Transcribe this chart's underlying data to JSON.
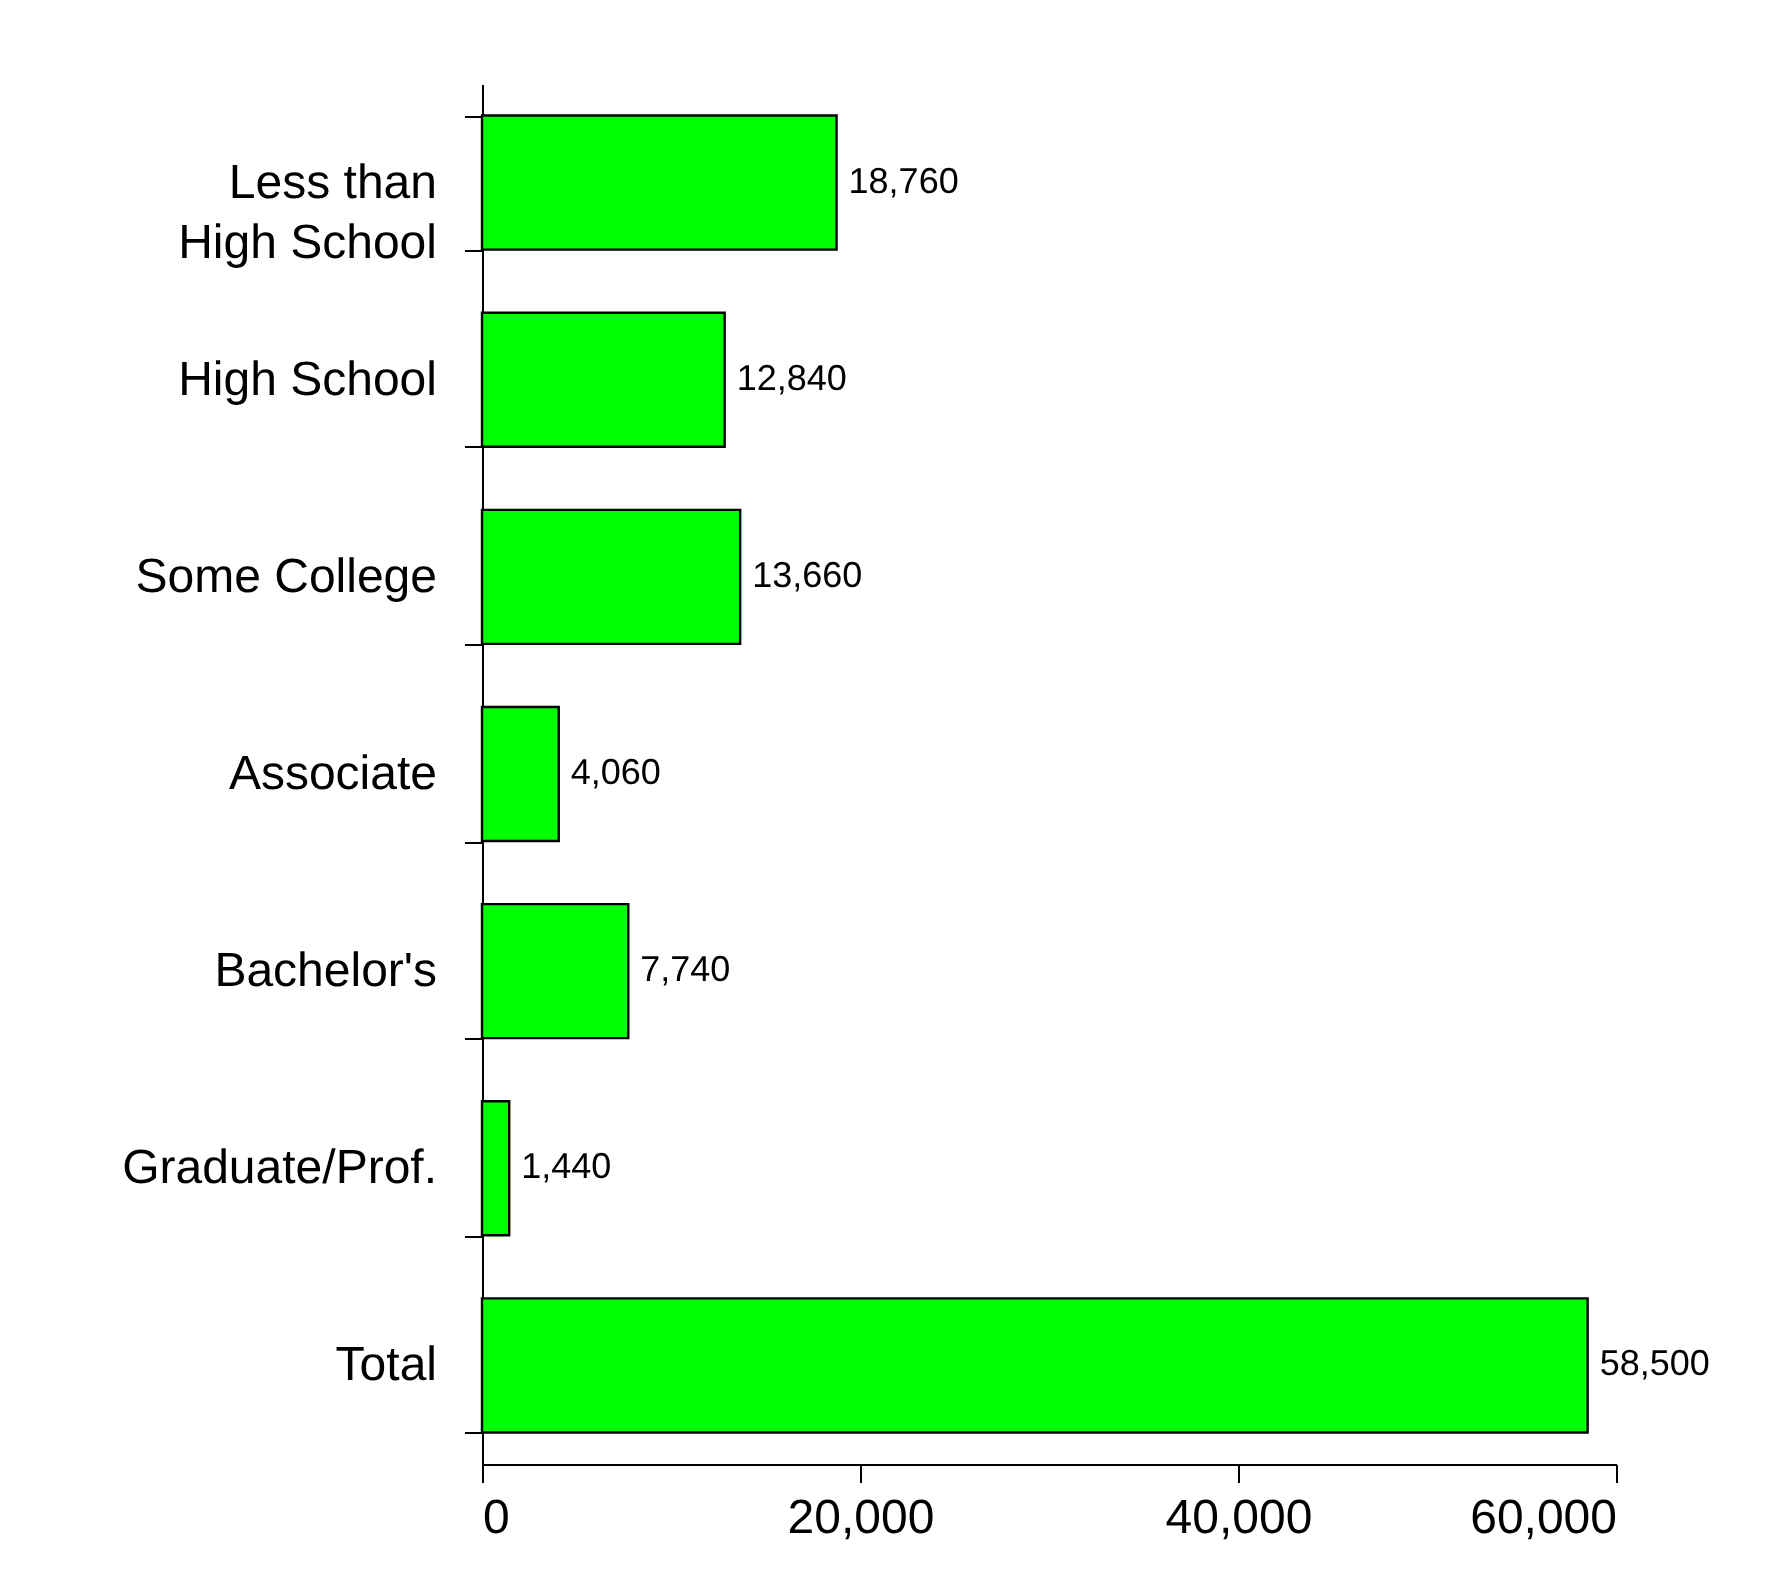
{
  "chart_data": {
    "type": "bar",
    "orientation": "horizontal",
    "categories": [
      "Less than High School",
      "High School",
      "Some College",
      "Associate",
      "Bachelor's",
      "Graduate/Prof.",
      "Total"
    ],
    "values": [
      18760,
      12840,
      13660,
      4060,
      7740,
      1440,
      58500
    ],
    "value_labels": [
      "18,760",
      "12,840",
      "13,660",
      "4,060",
      "7,740",
      "1,440",
      "58,500"
    ],
    "color": "#00ff00",
    "xlim": [
      0,
      60000
    ],
    "xticks": [
      0,
      {
        "value": 20000,
        "label": "20,000"
      },
      {
        "value": 40000,
        "label": "40,000"
      },
      {
        "value": 60000,
        "label": "60,000"
      }
    ]
  }
}
